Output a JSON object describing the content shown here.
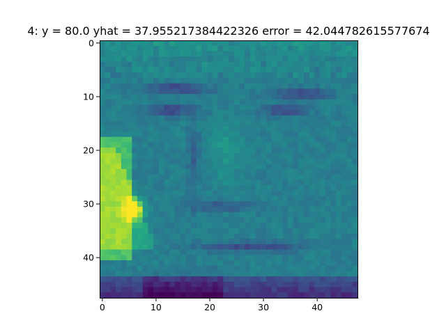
{
  "figure": {
    "title": "4: y = 80.0  yhat = 37.955217384422326  error = 42.044782615577674",
    "image_kind": "48x48 grayscale face image rendered with viridis colormap",
    "colormap": "viridis",
    "image_rows": 48,
    "image_cols": 48
  },
  "axes": {
    "x_ticks": [
      {
        "value": 0,
        "label": "0"
      },
      {
        "value": 10,
        "label": "10"
      },
      {
        "value": 20,
        "label": "20"
      },
      {
        "value": 30,
        "label": "30"
      },
      {
        "value": 40,
        "label": "40"
      }
    ],
    "y_ticks": [
      {
        "value": 0,
        "label": "0"
      },
      {
        "value": 10,
        "label": "10"
      },
      {
        "value": 20,
        "label": "20"
      },
      {
        "value": 30,
        "label": "30"
      },
      {
        "value": 40,
        "label": "40"
      }
    ]
  },
  "colors": {
    "text": "#000000",
    "axes_frame": "#000000",
    "background": "#ffffff"
  }
}
